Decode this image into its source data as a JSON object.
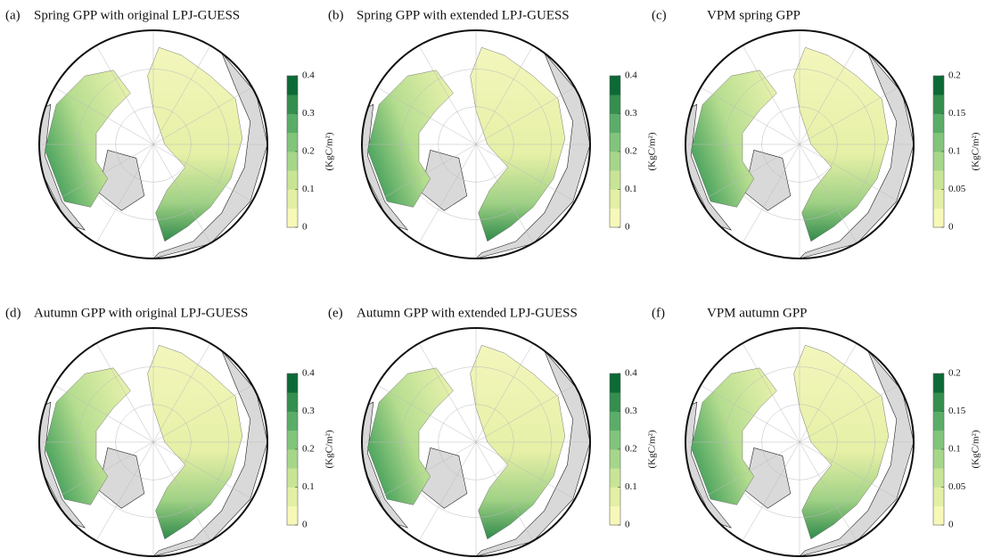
{
  "colors": [
    "#f6f8b8",
    "#e3f0a4",
    "#c8e596",
    "#a6d68a",
    "#81c47a",
    "#5aad68",
    "#348f4f",
    "#0b6a35"
  ],
  "panels": [
    {
      "label": "(a)",
      "title": "Spring GPP with original LPJ-GUESS",
      "colorbar": {
        "lim": [
          0,
          0.4
        ],
        "ticks": [
          0,
          0.1,
          0.2,
          0.3,
          0.4
        ],
        "unit": "(KgC/m²)"
      }
    },
    {
      "label": "(b)",
      "title": "Spring GPP with extended LPJ-GUESS",
      "colorbar": {
        "lim": [
          0,
          0.4
        ],
        "ticks": [
          0,
          0.1,
          0.2,
          0.3,
          0.4
        ],
        "unit": "(KgC/m²)"
      }
    },
    {
      "label": "(c)",
      "title": "VPM spring GPP",
      "colorbar": {
        "lim": [
          0,
          0.2
        ],
        "ticks": [
          0,
          0.05,
          0.1,
          0.15,
          0.2
        ],
        "unit": "(KgC/m²)"
      }
    },
    {
      "label": "(d)",
      "title": "Autumn GPP with original LPJ-GUESS",
      "colorbar": {
        "lim": [
          0,
          0.4
        ],
        "ticks": [
          0,
          0.1,
          0.2,
          0.3,
          0.4
        ],
        "unit": "(KgC/m²)"
      }
    },
    {
      "label": "(e)",
      "title": "Autumn GPP with extended LPJ-GUESS",
      "colorbar": {
        "lim": [
          0,
          0.4
        ],
        "ticks": [
          0,
          0.1,
          0.2,
          0.3,
          0.4
        ],
        "unit": "(KgC/m²)"
      }
    },
    {
      "label": "(f)",
      "title": "VPM autumn GPP",
      "colorbar": {
        "lim": [
          0,
          0.2
        ],
        "ticks": [
          0,
          0.05,
          0.1,
          0.15,
          0.2
        ],
        "unit": "(KgC/m²)"
      }
    }
  ]
}
